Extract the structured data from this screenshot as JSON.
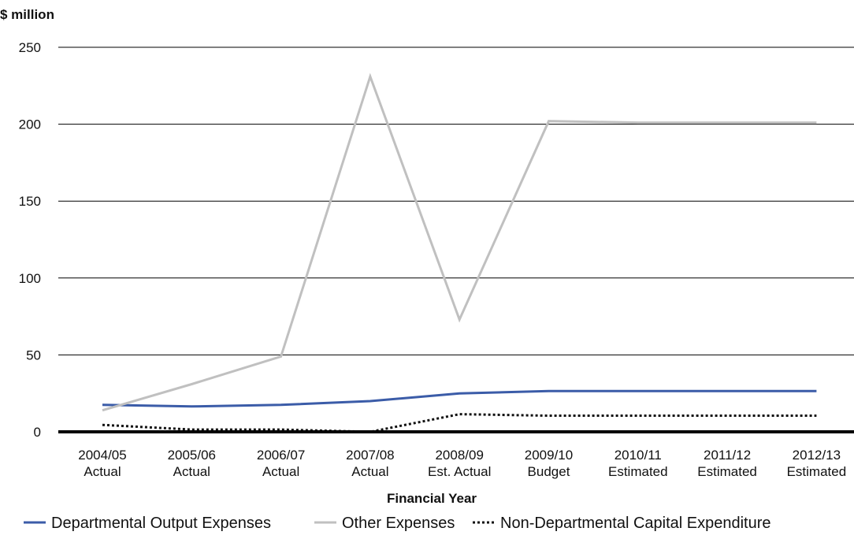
{
  "chart_data": {
    "type": "line",
    "ylabel": "$ million",
    "xlabel": "Financial Year",
    "ylim": [
      0,
      250
    ],
    "yticks": [
      "0",
      "50",
      "100",
      "150",
      "200",
      "250"
    ],
    "ytick_values": [
      0,
      50,
      100,
      150,
      200,
      250
    ],
    "grid": true,
    "legend_position": "bottom",
    "categories": [
      [
        "2004/05",
        "Actual"
      ],
      [
        "2005/06",
        "Actual"
      ],
      [
        "2006/07",
        "Actual"
      ],
      [
        "2007/08",
        "Actual"
      ],
      [
        "2008/09",
        "Est. Actual"
      ],
      [
        "2009/10",
        "Budget"
      ],
      [
        "2010/11",
        "Estimated"
      ],
      [
        "2011/12",
        "Estimated"
      ],
      [
        "2012/13",
        "Estimated"
      ]
    ],
    "series": [
      {
        "name": "Departmental Output Expenses",
        "color": "#3b5ca8",
        "style": "solid",
        "values": [
          17.5,
          16.5,
          17.5,
          20,
          25,
          26.5,
          26.5,
          26.5,
          26.5
        ]
      },
      {
        "name": "Other Expenses",
        "color": "#c0c0c0",
        "style": "solid",
        "values": [
          14,
          31,
          49,
          231,
          73,
          202,
          201,
          201,
          201
        ]
      },
      {
        "name": "Non-Departmental Capital Expenditure",
        "color": "#111111",
        "style": "dotted",
        "values": [
          4.5,
          1.5,
          1.5,
          0,
          11.5,
          10.5,
          10.5,
          10.5,
          10.5
        ]
      }
    ]
  }
}
